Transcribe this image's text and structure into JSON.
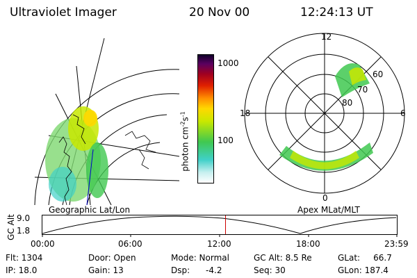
{
  "header": {
    "instrument": "Ultraviolet Imager",
    "date": "20 Nov 00",
    "time": "12:24:13 UT"
  },
  "colorbar": {
    "ticks": [
      "1000",
      "100"
    ],
    "unit_main": "photon cm",
    "unit_sup1": "-2",
    "unit_mid": "s",
    "unit_sup2": "-1"
  },
  "geo_panel": {
    "caption": "Geographic Lat/Lon"
  },
  "polar_panel": {
    "caption": "Apex MLat/MLT",
    "mlt_labels": {
      "top": "12",
      "bottom": "0",
      "left": "18",
      "right": "6"
    },
    "lat_labels": [
      "60",
      "70",
      "80"
    ]
  },
  "altitude_plot": {
    "ylabel": "GC Alt",
    "y_ticks": [
      "9.0",
      "1.8"
    ],
    "x_ticks": [
      "00:00",
      "06:00",
      "12:00",
      "18:00",
      "23:59"
    ],
    "marker_hour": 12.4
  },
  "footer": {
    "flt": "Flt:  1304",
    "ip": "IP:  18.0",
    "door": "Door:  Open",
    "gain": "Gain:  13",
    "mode": "Mode:  Normal",
    "dsp": "Dsp:      -4.2",
    "gcalt": "GC Alt:  8.5 Re",
    "seq": "Seq:  30",
    "glat": "GLat:     66.7",
    "glon": "GLon:  187.4"
  },
  "colors": {
    "scale": [
      "#ffffff",
      "#c8f0f0",
      "#40d0c8",
      "#40c850",
      "#c8e800",
      "#ffd800",
      "#ff9000",
      "#e02000",
      "#a00020",
      "#5a0060",
      "#10002a"
    ],
    "marker": "#cc0000"
  }
}
